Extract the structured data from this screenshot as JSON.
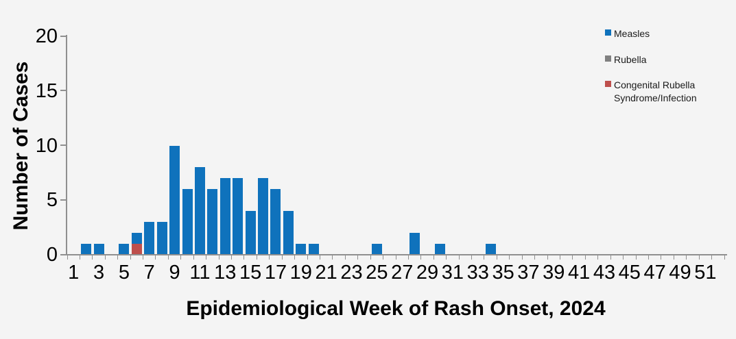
{
  "chart_data": {
    "type": "bar",
    "stacked": true,
    "title": "",
    "xlabel": "Epidemiological Week of Rash Onset, 2024",
    "ylabel": "Number of Cases",
    "weeks_total": 52,
    "ylim": [
      0,
      20
    ],
    "y_ticks": [
      0,
      5,
      10,
      15,
      20
    ],
    "x_tick_labels": [
      "1",
      "3",
      "5",
      "7",
      "9",
      "11",
      "13",
      "15",
      "17",
      "19",
      "21",
      "23",
      "25",
      "27",
      "29",
      "31",
      "33",
      "35",
      "37",
      "39",
      "41",
      "43",
      "45",
      "47",
      "49",
      "51"
    ],
    "grid": false,
    "legend_position": "top-right",
    "series": [
      {
        "name": "Measles",
        "color": "#0f72bc",
        "points": [
          [
            2,
            1
          ],
          [
            3,
            1
          ],
          [
            5,
            1
          ],
          [
            6,
            1
          ],
          [
            7,
            3
          ],
          [
            8,
            3
          ],
          [
            9,
            10
          ],
          [
            10,
            6
          ],
          [
            11,
            8
          ],
          [
            12,
            6
          ],
          [
            13,
            7
          ],
          [
            14,
            7
          ],
          [
            15,
            4
          ],
          [
            16,
            7
          ],
          [
            17,
            6
          ],
          [
            18,
            4
          ],
          [
            19,
            1
          ],
          [
            20,
            1
          ],
          [
            25,
            1
          ],
          [
            28,
            2
          ],
          [
            30,
            1
          ],
          [
            34,
            1
          ]
        ]
      },
      {
        "name": "Rubella",
        "color": "#808080",
        "points": []
      },
      {
        "name": "Congenital Rubella Syndrome/Infection",
        "color": "#be4f4c",
        "points": [
          [
            6,
            1
          ]
        ]
      }
    ],
    "stack_order_bottom_to_top": [
      "Congenital Rubella Syndrome/Infection",
      "Rubella",
      "Measles"
    ]
  },
  "legend": {
    "items": [
      {
        "label": "Measles",
        "color": "#0f72bc"
      },
      {
        "label": "Rubella",
        "color": "#808080"
      },
      {
        "label": "Congenital Rubella Syndrome/Infection",
        "color": "#be4f4c"
      }
    ]
  },
  "colors": {
    "background": "#f4f4f4",
    "axis": "#8f8f8f",
    "text": "#000000"
  }
}
